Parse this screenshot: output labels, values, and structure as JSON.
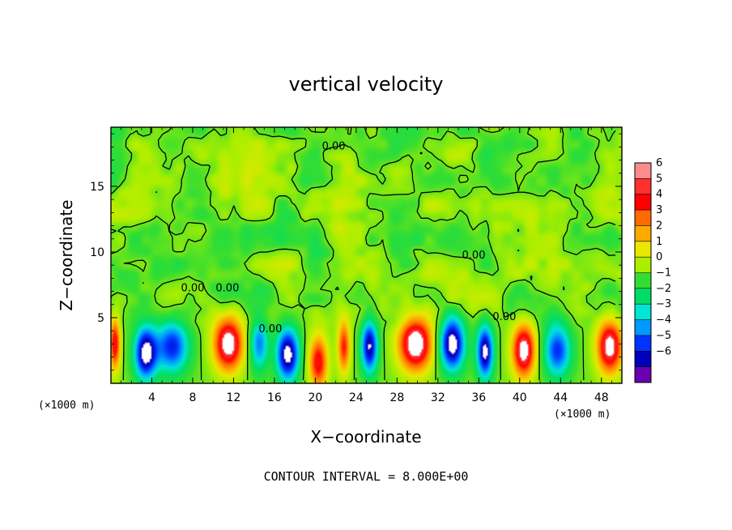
{
  "chart_data": {
    "type": "heatmap",
    "title": "vertical velocity",
    "xlabel": "X−coordinate",
    "ylabel": "Z−coordinate",
    "x_unit": "(×1000 m)",
    "x_unit_right": "(×1000 m)",
    "xlim": [
      0,
      50
    ],
    "ylim": [
      0,
      19.5
    ],
    "x_ticks": [
      4,
      8,
      12,
      16,
      20,
      24,
      28,
      32,
      36,
      40,
      44,
      48
    ],
    "y_ticks": [
      5,
      10,
      15
    ],
    "colorbar": {
      "levels": [
        6,
        5,
        4,
        3,
        2,
        1,
        0,
        -1,
        -2,
        -3,
        -4,
        -5,
        -6
      ],
      "labels": [
        "6",
        "5",
        "4",
        "3",
        "2",
        "1",
        "0",
        "−1",
        "−2",
        "−3",
        "−4",
        "−5",
        "−6"
      ],
      "colors": [
        "#ff8c8c",
        "#ff3030",
        "#ff0000",
        "#ff6a00",
        "#ffaa00",
        "#e8e800",
        "#aaee00",
        "#33dd33",
        "#00dd66",
        "#00e5d5",
        "#0099ff",
        "#0033ff",
        "#0000bb",
        "#6a00b0"
      ]
    },
    "contour_labels": [
      {
        "text": "0.00",
        "x": 8.0,
        "y": 7.0
      },
      {
        "text": "0.00",
        "x": 11.4,
        "y": 7.0
      },
      {
        "text": "0.00",
        "x": 15.6,
        "y": 3.9
      },
      {
        "text": "0.00",
        "x": 21.8,
        "y": 17.8
      },
      {
        "text": "0.00",
        "x": 35.5,
        "y": 9.5
      },
      {
        "text": "0.00",
        "x": 38.5,
        "y": 4.8
      }
    ],
    "lower_cells": [
      {
        "x": 0.4,
        "z": 3.0,
        "w": 0.5,
        "sign": 1,
        "amp": 4.6
      },
      {
        "x": 3.4,
        "z": 2.3,
        "w": 1.1,
        "sign": -1,
        "amp": 6.0
      },
      {
        "x": 6.0,
        "z": 2.8,
        "w": 1.6,
        "sign": -1,
        "amp": 4.5
      },
      {
        "x": 11.5,
        "z": 3.0,
        "w": 1.4,
        "sign": 1,
        "amp": 6.2
      },
      {
        "x": 14.5,
        "z": 3.0,
        "w": 0.9,
        "sign": -1,
        "amp": 3.5
      },
      {
        "x": 17.3,
        "z": 2.2,
        "w": 1.1,
        "sign": -1,
        "amp": 6.0
      },
      {
        "x": 20.3,
        "z": 1.6,
        "w": 0.9,
        "sign": 1,
        "amp": 4.5
      },
      {
        "x": 22.8,
        "z": 2.8,
        "w": 0.6,
        "sign": 1,
        "amp": 4.0
      },
      {
        "x": 25.3,
        "z": 2.8,
        "w": 0.8,
        "sign": -1,
        "amp": 5.5
      },
      {
        "x": 29.8,
        "z": 3.0,
        "w": 1.6,
        "sign": 1,
        "amp": 6.5
      },
      {
        "x": 33.4,
        "z": 3.0,
        "w": 1.2,
        "sign": -1,
        "amp": 6.2
      },
      {
        "x": 36.6,
        "z": 2.4,
        "w": 0.8,
        "sign": -1,
        "amp": 5.8
      },
      {
        "x": 40.4,
        "z": 2.5,
        "w": 1.1,
        "sign": 1,
        "amp": 6.0
      },
      {
        "x": 43.7,
        "z": 2.5,
        "w": 1.3,
        "sign": -1,
        "amp": 4.3
      },
      {
        "x": 48.8,
        "z": 2.8,
        "w": 1.2,
        "sign": 1,
        "amp": 6.0
      }
    ]
  },
  "footer": {
    "text": "CONTOUR INTERVAL = 8.000E+00"
  }
}
